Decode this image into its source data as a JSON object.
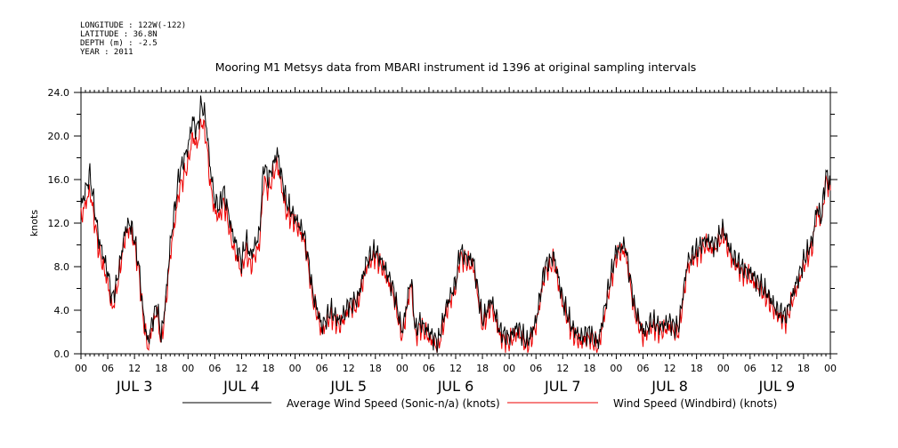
{
  "header": {
    "longitude": "LONGITUDE : 122W(-122)",
    "latitude": "LATITUDE : 36.8N",
    "depth": "DEPTH (m) : -2.5",
    "year": "YEAR : 2011"
  },
  "chart_data": {
    "type": "line",
    "title": "Mooring M1 Metsys data from MBARI instrument id 1396 at original sampling intervals",
    "ylabel": "knots",
    "xlabel": "",
    "ylim": [
      0,
      24
    ],
    "xlim_hours": [
      0,
      168
    ],
    "y_ticks": [
      "0.0",
      "4.0",
      "8.0",
      "12.0",
      "16.0",
      "20.0",
      "24.0"
    ],
    "x_hour_labels": [
      "00",
      "06",
      "12",
      "18",
      "00",
      "06",
      "12",
      "18",
      "00",
      "06",
      "12",
      "18",
      "00",
      "06",
      "12",
      "18",
      "00",
      "06",
      "12",
      "18",
      "00",
      "06",
      "12",
      "18",
      "00",
      "06",
      "12",
      "18",
      "00"
    ],
    "day_labels": [
      "JUL 3",
      "JUL 4",
      "JUL 5",
      "JUL 6",
      "JUL 7",
      "JUL 8",
      "JUL 9"
    ],
    "grid": false,
    "legend_position": "bottom",
    "series": [
      {
        "name": "Average Wind Speed (Sonic-n/a) (knots)",
        "color": "#000000",
        "x_hours": [
          0,
          2,
          4,
          6,
          7,
          8,
          10,
          11,
          12,
          13,
          14,
          15,
          16,
          17,
          18,
          19,
          20,
          22,
          24,
          25,
          26,
          27,
          28,
          29,
          30,
          31,
          32,
          34,
          36,
          37,
          38,
          40,
          41,
          42,
          44,
          46,
          48,
          50,
          51,
          52,
          54,
          56,
          58,
          60,
          62,
          64,
          66,
          68,
          70,
          72,
          74,
          75,
          76,
          78,
          80,
          82,
          84,
          85,
          86,
          88,
          90,
          92,
          94,
          96,
          98,
          100,
          102,
          104,
          106,
          108,
          110,
          112,
          114,
          116,
          118,
          120,
          122,
          124,
          126,
          128,
          130,
          132,
          133,
          134,
          136,
          138,
          140,
          142,
          144,
          146,
          148,
          150,
          152,
          154,
          156,
          158,
          160,
          162,
          164,
          165,
          166,
          167,
          168
        ],
        "values": [
          13.5,
          16.5,
          10.5,
          7.5,
          5.0,
          6.5,
          11.5,
          12.0,
          10.5,
          8.0,
          3.5,
          1.0,
          3.0,
          4.5,
          1.5,
          5.0,
          10.0,
          16.5,
          19.0,
          21.5,
          20.5,
          23.0,
          21.5,
          17.0,
          14.0,
          13.5,
          15.0,
          11.0,
          8.5,
          10.5,
          9.0,
          11.0,
          17.5,
          16.0,
          18.5,
          14.0,
          12.5,
          11.0,
          8.5,
          5.5,
          2.5,
          4.0,
          3.0,
          4.5,
          5.0,
          8.5,
          9.5,
          8.0,
          6.0,
          2.0,
          7.0,
          2.0,
          3.0,
          2.0,
          1.0,
          4.5,
          6.5,
          9.5,
          9.0,
          8.5,
          3.0,
          5.0,
          2.0,
          1.5,
          2.5,
          1.0,
          3.0,
          8.0,
          9.0,
          5.0,
          2.5,
          1.5,
          2.0,
          1.0,
          5.5,
          9.5,
          10.0,
          4.5,
          2.0,
          3.0,
          2.5,
          3.0,
          2.5,
          2.5,
          8.5,
          9.5,
          10.5,
          10.0,
          11.5,
          9.0,
          8.0,
          7.5,
          6.5,
          5.5,
          4.0,
          3.5,
          6.0,
          8.5,
          10.5,
          13.5,
          12.5,
          16.5,
          15.5
        ]
      },
      {
        "name": "Wind Speed (Windbird) (knots)",
        "color": "#ee0000",
        "x_hours": [
          0,
          2,
          4,
          6,
          7,
          8,
          10,
          11,
          12,
          13,
          14,
          15,
          16,
          17,
          18,
          19,
          20,
          22,
          24,
          25,
          26,
          27,
          28,
          29,
          30,
          31,
          32,
          34,
          36,
          37,
          38,
          40,
          41,
          42,
          44,
          46,
          48,
          50,
          51,
          52,
          54,
          56,
          58,
          60,
          62,
          64,
          66,
          68,
          70,
          72,
          74,
          75,
          76,
          78,
          80,
          82,
          84,
          85,
          86,
          88,
          90,
          92,
          94,
          96,
          98,
          100,
          102,
          104,
          106,
          108,
          110,
          112,
          114,
          116,
          118,
          120,
          122,
          124,
          126,
          128,
          130,
          132,
          133,
          134,
          136,
          138,
          140,
          142,
          144,
          146,
          148,
          150,
          152,
          154,
          156,
          158,
          160,
          162,
          164,
          165,
          166,
          167,
          168
        ],
        "values": [
          12.5,
          15.0,
          9.5,
          6.5,
          4.0,
          6.0,
          11.0,
          11.5,
          10.0,
          7.5,
          3.0,
          0.5,
          2.5,
          4.0,
          1.0,
          4.5,
          9.0,
          15.0,
          17.5,
          20.0,
          19.0,
          21.5,
          20.0,
          15.5,
          13.0,
          12.5,
          14.0,
          10.0,
          7.5,
          9.5,
          8.0,
          10.0,
          16.0,
          15.0,
          17.5,
          13.0,
          12.0,
          10.5,
          8.0,
          5.0,
          2.0,
          3.5,
          2.5,
          4.0,
          4.5,
          8.0,
          9.0,
          7.5,
          5.5,
          1.5,
          6.5,
          1.5,
          2.5,
          1.5,
          0.5,
          4.0,
          6.0,
          9.0,
          8.5,
          8.0,
          2.5,
          4.5,
          1.5,
          1.0,
          2.0,
          0.5,
          2.5,
          7.5,
          8.5,
          4.5,
          2.0,
          1.0,
          1.5,
          0.5,
          5.0,
          9.0,
          9.5,
          4.0,
          1.5,
          2.5,
          2.0,
          2.5,
          2.0,
          2.0,
          8.0,
          9.0,
          10.0,
          9.5,
          11.0,
          8.5,
          7.5,
          7.0,
          6.0,
          5.0,
          3.5,
          3.0,
          5.5,
          8.0,
          10.0,
          13.0,
          12.0,
          16.0,
          15.0
        ]
      }
    ]
  }
}
